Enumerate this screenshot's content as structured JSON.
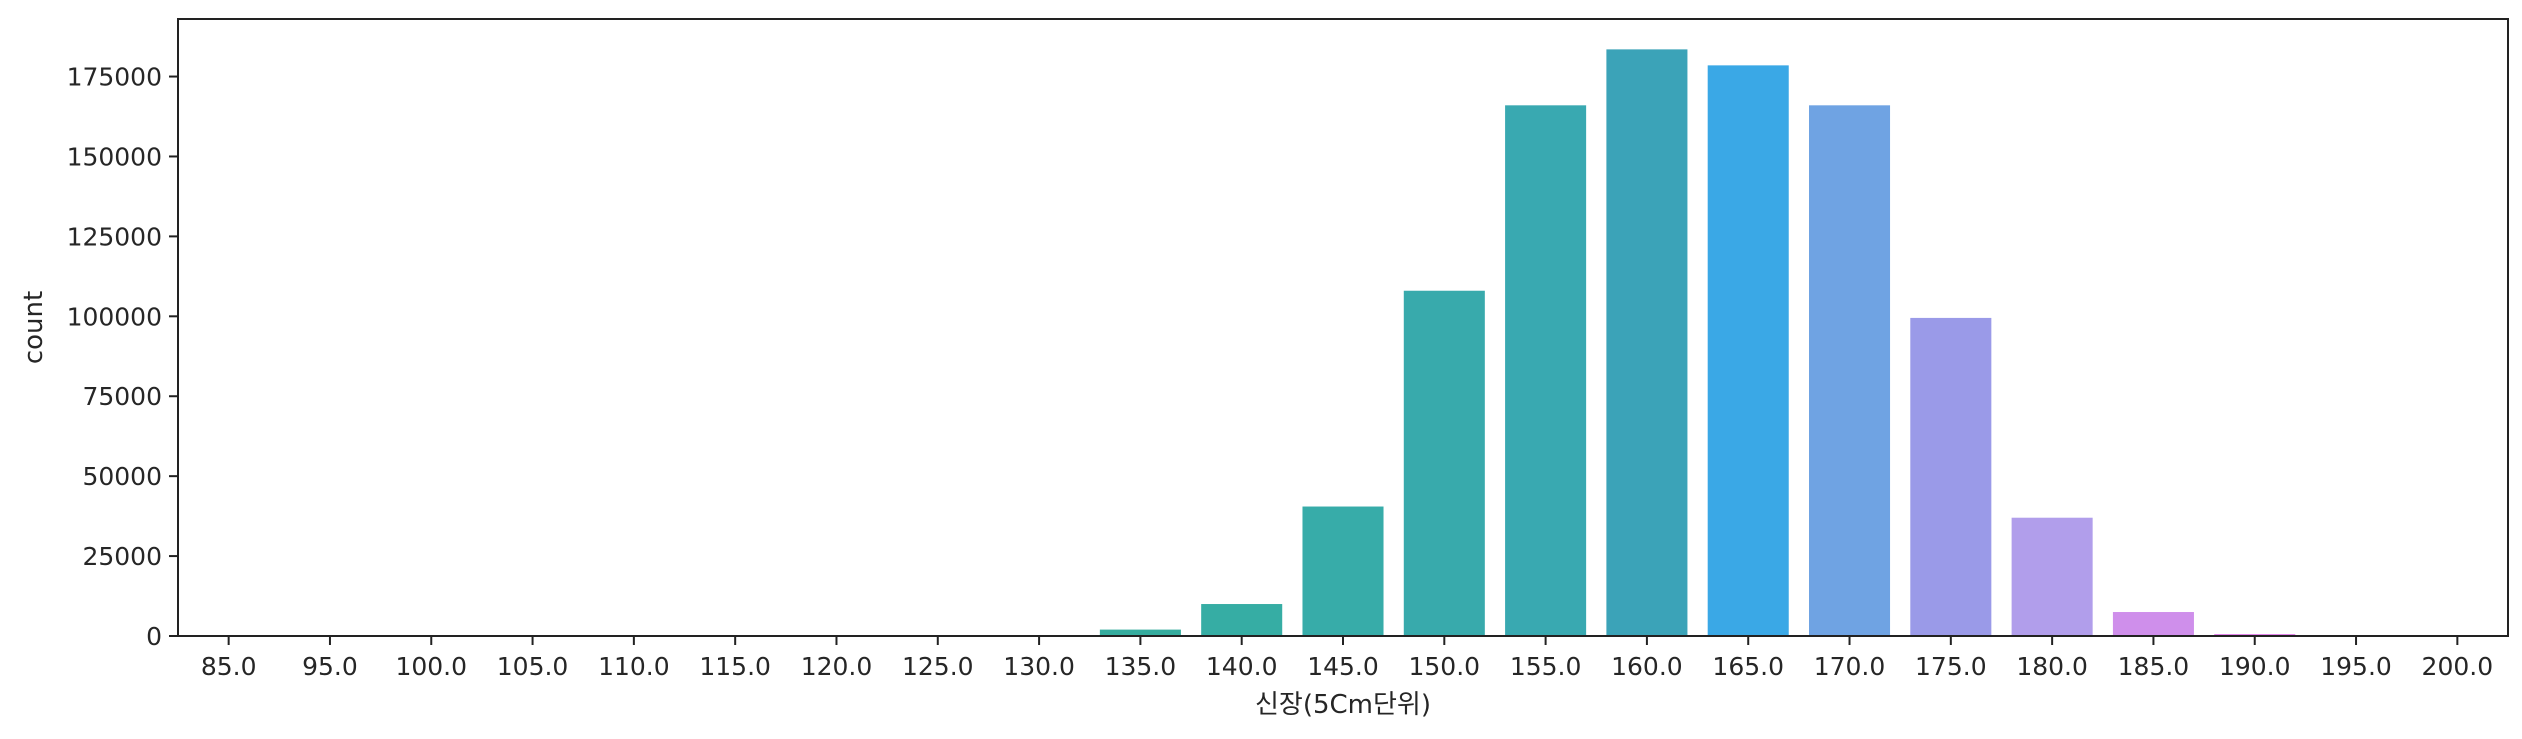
{
  "chart_data": {
    "type": "bar",
    "xlabel": "신장(5Cm단위)",
    "ylabel": "count",
    "categories": [
      "85.0",
      "95.0",
      "100.0",
      "105.0",
      "110.0",
      "115.0",
      "120.0",
      "125.0",
      "130.0",
      "135.0",
      "140.0",
      "145.0",
      "150.0",
      "155.0",
      "160.0",
      "165.0",
      "170.0",
      "175.0",
      "180.0",
      "185.0",
      "190.0",
      "195.0",
      "200.0"
    ],
    "values": [
      2,
      3,
      5,
      10,
      20,
      40,
      80,
      150,
      300,
      2000,
      10000,
      40500,
      108000,
      166000,
      183500,
      178500,
      166000,
      99500,
      37000,
      7500,
      600,
      30,
      3
    ],
    "colors": [
      "#f77189",
      "#f7754f",
      "#dc8932",
      "#c39532",
      "#ae9d31",
      "#97a431",
      "#77ab31",
      "#33b07a",
      "#34ae91",
      "#35ac9e",
      "#36ada4",
      "#37aca9",
      "#38aaac",
      "#39a9b1",
      "#3ba3b8",
      "#3aa8e6",
      "#6fa3e3",
      "#9a9ae8",
      "#b19eeb",
      "#cf8feb",
      "#e07be8",
      "#f461dd",
      "#f564d4"
    ],
    "ylim": [
      0,
      193000
    ],
    "yticks": [
      0,
      25000,
      50000,
      75000,
      100000,
      125000,
      150000,
      175000
    ],
    "grid": false,
    "legend": "none"
  }
}
